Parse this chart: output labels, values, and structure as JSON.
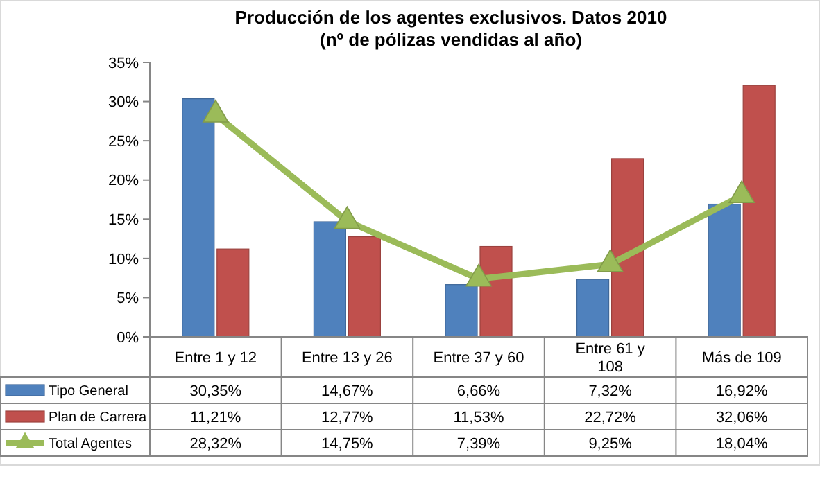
{
  "chart_data": {
    "type": "bar",
    "title": "Producción de los agentes exclusivos. Datos 2010",
    "subtitle": "(nº de pólizas vendidas al año)",
    "categories": [
      "Entre 1 y 12",
      "Entre 13 y 26",
      "Entre 37 y 60",
      "Entre 61 y 108",
      "Más de 109"
    ],
    "series": [
      {
        "name": "Tipo General",
        "color": "#4f81bd",
        "values": [
          30.35,
          14.67,
          6.66,
          7.32,
          16.92
        ],
        "value_labels": [
          "30,35%",
          "14,67%",
          "6,66%",
          "7,32%",
          "16,92%"
        ]
      },
      {
        "name": "Plan de Carrera",
        "color": "#c0504d",
        "values": [
          11.21,
          12.77,
          11.53,
          22.72,
          32.06
        ],
        "value_labels": [
          "11,21%",
          "12,77%",
          "11,53%",
          "22,72%",
          "32,06%"
        ]
      },
      {
        "name": "Total Agentes",
        "type": "line",
        "color": "#9bbb59",
        "values": [
          28.32,
          14.75,
          7.39,
          9.25,
          18.04
        ],
        "value_labels": [
          "28,32%",
          "14,75%",
          "7,39%",
          "9,25%",
          "18,04%"
        ]
      }
    ],
    "ylim": [
      0,
      35
    ],
    "yticks": [
      {
        "value": 0,
        "label": "0%"
      },
      {
        "value": 5,
        "label": "5%"
      },
      {
        "value": 10,
        "label": "10%"
      },
      {
        "value": 15,
        "label": "15%"
      },
      {
        "value": 20,
        "label": "20%"
      },
      {
        "value": 25,
        "label": "25%"
      },
      {
        "value": 30,
        "label": "30%"
      },
      {
        "value": 35,
        "label": "35%"
      }
    ],
    "grid": false,
    "legend": "left",
    "marker": "triangle",
    "line_style": "solid"
  }
}
